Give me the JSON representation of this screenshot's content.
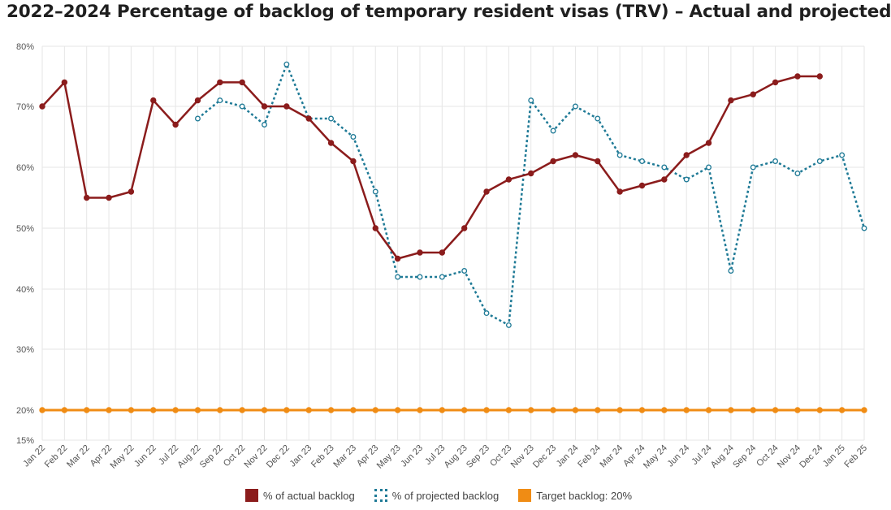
{
  "chart_data": {
    "type": "line",
    "title": "2022–2024 Percentage of backlog of temporary resident visas (TRV) – Actual and projected",
    "categories": [
      "Jan 22",
      "Feb 22",
      "Mar 22",
      "Apr 22",
      "May 22",
      "Jun 22",
      "Jul 22",
      "Aug 22",
      "Sep 22",
      "Oct 22",
      "Nov 22",
      "Dec 22",
      "Jan 23",
      "Feb 23",
      "Mar 23",
      "Apr 23",
      "May 23",
      "Jun 23",
      "Jul 23",
      "Aug 23",
      "Sep 23",
      "Oct 23",
      "Nov 23",
      "Dec 23",
      "Jan 24",
      "Feb 24",
      "Mar 24",
      "Apr 24",
      "May 24",
      "Jun 24",
      "Jul 24",
      "Aug 24",
      "Sep 24",
      "Oct 24",
      "Nov 24",
      "Dec 24",
      "Jan 25",
      "Feb 25"
    ],
    "y_ticks": [
      "15%",
      "20%",
      "30%",
      "40%",
      "50%",
      "60%",
      "70%",
      "80%"
    ],
    "y_tick_values": [
      15,
      20,
      30,
      40,
      50,
      60,
      70,
      80
    ],
    "ylim": [
      15,
      80
    ],
    "grid": true,
    "legend_position": "bottom",
    "series": [
      {
        "name": "% of actual backlog",
        "color": "#8b1c1c",
        "style": "solid",
        "values": [
          70,
          74,
          55,
          55,
          56,
          71,
          67,
          71,
          74,
          74,
          70,
          70,
          68,
          64,
          61,
          50,
          45,
          46,
          46,
          50,
          56,
          58,
          59,
          61,
          62,
          61,
          56,
          57,
          58,
          62,
          64,
          71,
          72,
          74,
          75,
          75,
          null,
          null
        ]
      },
      {
        "name": "% of projected backlog",
        "color": "#1f7a96",
        "style": "dotted",
        "values": [
          null,
          null,
          null,
          null,
          null,
          null,
          null,
          68,
          71,
          70,
          67,
          77,
          68,
          68,
          65,
          56,
          42,
          42,
          42,
          43,
          36,
          34,
          71,
          66,
          70,
          68,
          62,
          61,
          60,
          58,
          60,
          43,
          60,
          61,
          59,
          61,
          62,
          50
        ]
      },
      {
        "name": "Target backlog: 20%",
        "color": "#f08c14",
        "style": "solid",
        "values": [
          20,
          20,
          20,
          20,
          20,
          20,
          20,
          20,
          20,
          20,
          20,
          20,
          20,
          20,
          20,
          20,
          20,
          20,
          20,
          20,
          20,
          20,
          20,
          20,
          20,
          20,
          20,
          20,
          20,
          20,
          20,
          20,
          20,
          20,
          20,
          20,
          20,
          20
        ]
      }
    ]
  }
}
